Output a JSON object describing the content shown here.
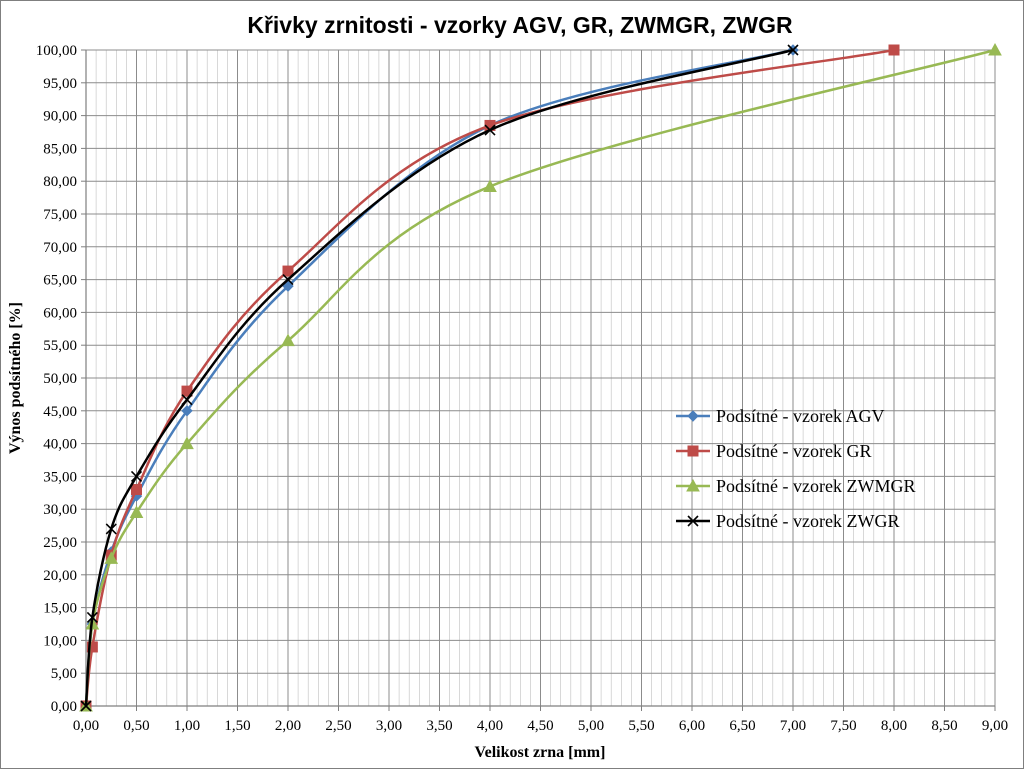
{
  "chart_data": {
    "type": "line",
    "title": "Křivky zrnitosti - vzorky  AGV, GR, ZWMGR, ZWGR",
    "xlabel": "Velikost zrna [mm]",
    "ylabel": "Výnos podsítného [%]",
    "xlim": [
      0,
      9
    ],
    "ylim": [
      0,
      100
    ],
    "x_tick_labels": [
      "0,00",
      "0,50",
      "1,00",
      "1,50",
      "2,00",
      "2,50",
      "3,00",
      "3,50",
      "4,00",
      "4,50",
      "5,00",
      "5,50",
      "6,00",
      "6,50",
      "7,00",
      "7,50",
      "8,00",
      "8,50",
      "9,00"
    ],
    "y_tick_labels": [
      "0,00",
      "5,00",
      "10,00",
      "15,00",
      "20,00",
      "25,00",
      "30,00",
      "35,00",
      "40,00",
      "45,00",
      "50,00",
      "55,00",
      "60,00",
      "65,00",
      "70,00",
      "75,00",
      "80,00",
      "85,00",
      "90,00",
      "95,00",
      "100,00"
    ],
    "grid": true,
    "legend_position": "right",
    "series": [
      {
        "name": "Podsítné - vzorek AGV",
        "color": "#4a7ebb",
        "marker": "diamond",
        "x": [
          0,
          0.063,
          0.25,
          0.5,
          1,
          2,
          4,
          7
        ],
        "y": [
          0,
          12.5,
          23.5,
          32,
          45,
          64,
          88.5,
          100
        ]
      },
      {
        "name": "Podsítné - vzorek GR",
        "color": "#be4b48",
        "marker": "square",
        "x": [
          0,
          0.063,
          0.25,
          0.5,
          1,
          2,
          4,
          8
        ],
        "y": [
          0,
          9,
          23,
          33,
          48,
          66.3,
          88.5,
          100
        ]
      },
      {
        "name": "Podsítné - vzorek ZWMGR",
        "color": "#98b954",
        "marker": "triangle",
        "x": [
          0,
          0.063,
          0.25,
          0.5,
          1,
          2,
          4,
          9
        ],
        "y": [
          0,
          12.5,
          22.5,
          29.5,
          40,
          55.7,
          79.2,
          100
        ]
      },
      {
        "name": "Podsítné - vzorek ZWGR",
        "color": "#000000",
        "marker": "x",
        "x": [
          0,
          0.063,
          0.25,
          0.5,
          1,
          2,
          4,
          7
        ],
        "y": [
          0,
          13.5,
          27,
          35,
          46.7,
          65,
          87.8,
          100
        ]
      }
    ]
  }
}
